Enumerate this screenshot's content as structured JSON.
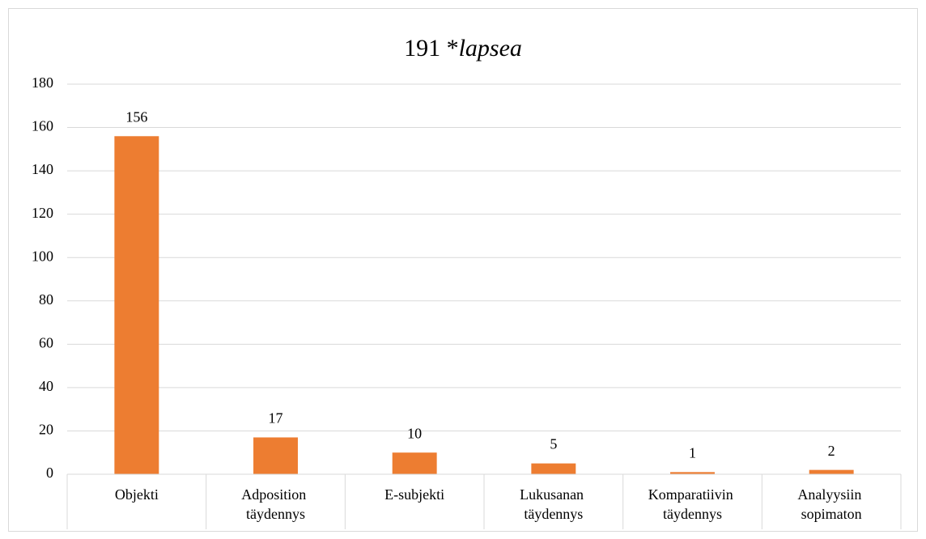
{
  "chart_data": {
    "type": "bar",
    "title": "191 *lapsea",
    "categories": [
      "Objekti",
      "Adposition täydennys",
      "E-subjekti",
      "Lukusanan täydennys",
      "Komparatiivin täydennys",
      "Analyysiin sopimaton"
    ],
    "values": [
      156,
      17,
      10,
      5,
      1,
      2
    ],
    "color": "#ed7d31",
    "ylim": [
      0,
      180
    ],
    "yticks": [
      0,
      20,
      40,
      60,
      80,
      100,
      120,
      140,
      160,
      180
    ],
    "grid": true,
    "data_labels": true
  }
}
